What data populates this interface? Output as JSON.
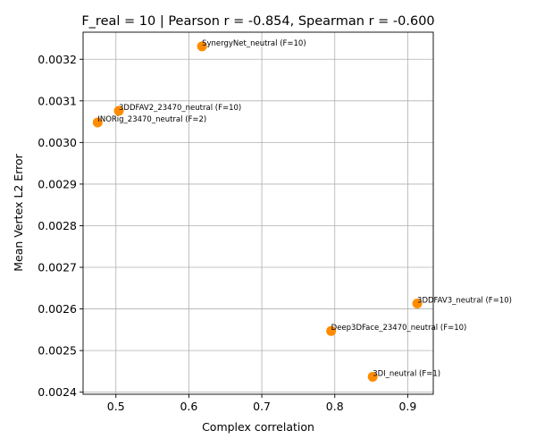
{
  "chart_data": {
    "type": "scatter",
    "title": "F_real = 10 | Pearson r = -0.854, Spearman r = -0.600",
    "xlabel": "Complex correlation",
    "ylabel": "Mean Vertex L2 Error",
    "xlim": [
      0.455,
      0.935
    ],
    "ylim": [
      0.002395,
      0.003265
    ],
    "grid": true,
    "point_color": "#ff8c00",
    "x_ticks": [
      0.5,
      0.6,
      0.7,
      0.8,
      0.9
    ],
    "x_tick_labels": [
      "0.5",
      "0.6",
      "0.7",
      "0.8",
      "0.9"
    ],
    "y_ticks": [
      0.0024,
      0.0025,
      0.0026,
      0.0027,
      0.0028,
      0.0029,
      0.003,
      0.0031,
      0.0032
    ],
    "y_tick_labels": [
      "0.0024",
      "0.0025",
      "0.0026",
      "0.0027",
      "0.0028",
      "0.0029",
      "0.0030",
      "0.0031",
      "0.0032"
    ],
    "points": [
      {
        "label": "SynergyNet_neutral (F=10)",
        "x": 0.618,
        "y": 0.003231
      },
      {
        "label": "3DDFAV2_23470_neutral (F=10)",
        "x": 0.504,
        "y": 0.003076
      },
      {
        "label": "INORig_23470_neutral (F=2)",
        "x": 0.475,
        "y": 0.003048
      },
      {
        "label": "3DDFAV3_neutral (F=10)",
        "x": 0.913,
        "y": 0.002613
      },
      {
        "label": "Deep3DFace_23470_neutral (F=10)",
        "x": 0.795,
        "y": 0.002547
      },
      {
        "label": "3DI_neutral (F=1)",
        "x": 0.852,
        "y": 0.002437
      }
    ]
  }
}
